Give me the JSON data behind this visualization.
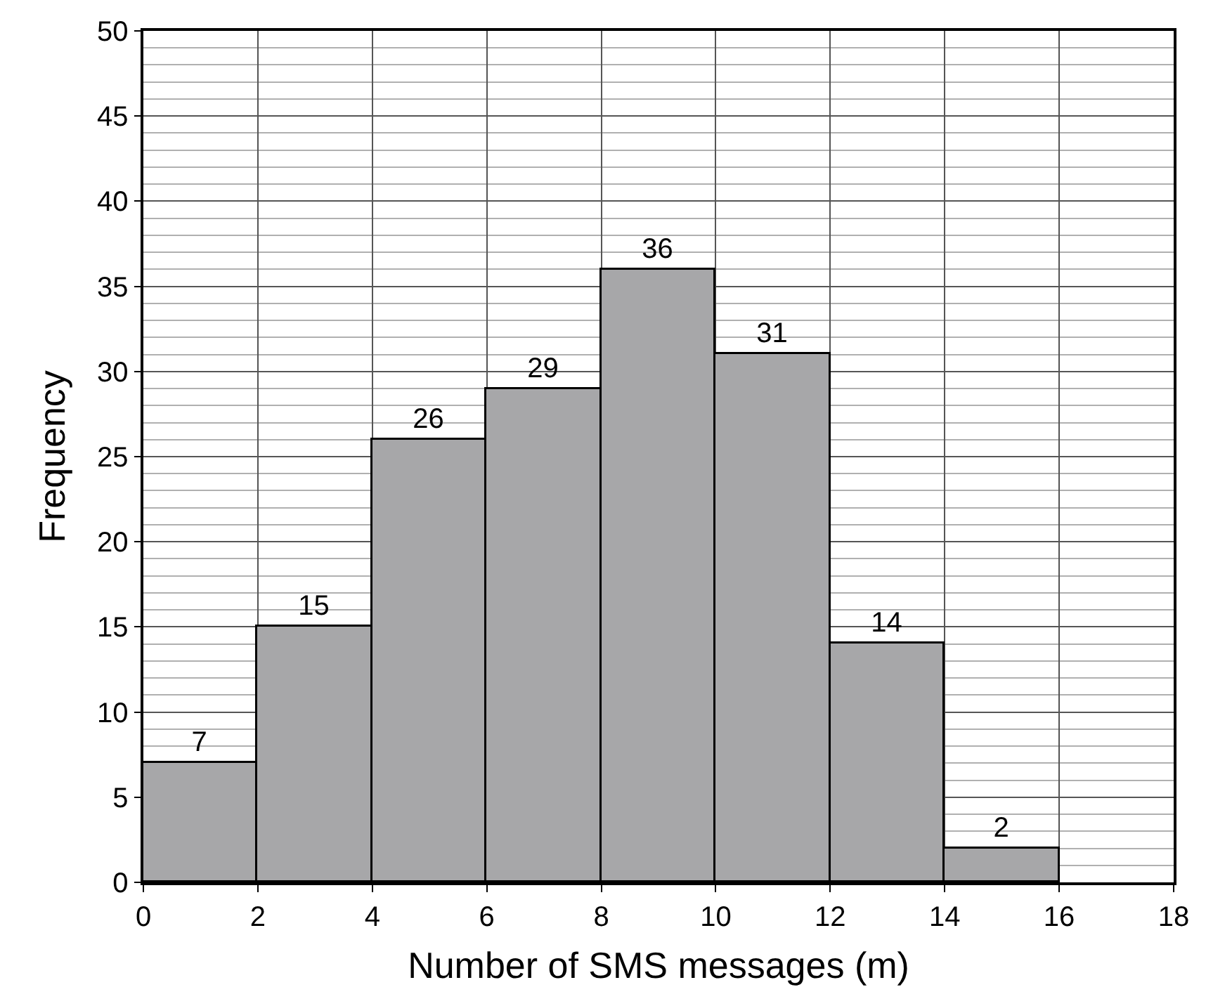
{
  "chart_data": {
    "type": "histogram",
    "xlabel": "Number of SMS messages (m)",
    "ylabel": "Frequency",
    "bins": [
      0,
      2,
      4,
      6,
      8,
      10,
      12,
      14,
      16
    ],
    "values": [
      7,
      15,
      26,
      29,
      36,
      31,
      14,
      2
    ],
    "color": "#a7a7a9",
    "data_labels": true,
    "grid": true,
    "legend": false,
    "xlim": [
      0,
      18
    ],
    "xticks": [
      0,
      2,
      4,
      6,
      8,
      10,
      12,
      14,
      16,
      18
    ],
    "ylim": [
      0,
      50
    ],
    "yticks": [
      0,
      5,
      10,
      15,
      20,
      25,
      30,
      35,
      40,
      45,
      50
    ]
  }
}
